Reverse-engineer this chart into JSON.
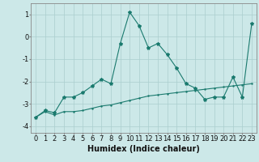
{
  "title": "",
  "xlabel": "Humidex (Indice chaleur)",
  "ylabel": "",
  "xlim": [
    -0.5,
    23.5
  ],
  "ylim": [
    -4.3,
    1.5
  ],
  "yticks": [
    1,
    0,
    -1,
    -2,
    -3,
    -4
  ],
  "xticks": [
    0,
    1,
    2,
    3,
    4,
    5,
    6,
    7,
    8,
    9,
    10,
    11,
    12,
    13,
    14,
    15,
    16,
    17,
    18,
    19,
    20,
    21,
    22,
    23
  ],
  "line1_x": [
    0,
    1,
    2,
    3,
    4,
    5,
    6,
    7,
    8,
    9,
    10,
    11,
    12,
    13,
    14,
    15,
    16,
    17,
    18,
    19,
    20,
    21,
    22,
    23
  ],
  "line1_y": [
    -3.6,
    -3.3,
    -3.4,
    -2.7,
    -2.7,
    -2.5,
    -2.2,
    -1.9,
    -2.1,
    -0.3,
    1.1,
    0.5,
    -0.5,
    -0.3,
    -0.8,
    -1.4,
    -2.1,
    -2.3,
    -2.8,
    -2.7,
    -2.7,
    -1.8,
    -2.7,
    0.6
  ],
  "line2_x": [
    0,
    1,
    2,
    3,
    4,
    5,
    6,
    7,
    8,
    9,
    10,
    11,
    12,
    13,
    14,
    15,
    16,
    17,
    18,
    19,
    20,
    21,
    22,
    23
  ],
  "line2_y": [
    -3.6,
    -3.35,
    -3.5,
    -3.35,
    -3.35,
    -3.3,
    -3.2,
    -3.1,
    -3.05,
    -2.95,
    -2.85,
    -2.75,
    -2.65,
    -2.6,
    -2.55,
    -2.5,
    -2.45,
    -2.4,
    -2.35,
    -2.3,
    -2.25,
    -2.2,
    -2.15,
    -2.1
  ],
  "line_color": "#1a7a6e",
  "bg_color": "#cce8e8",
  "grid_color": "#aacece",
  "tick_fontsize": 6,
  "xlabel_fontsize": 7,
  "marker_size": 3
}
